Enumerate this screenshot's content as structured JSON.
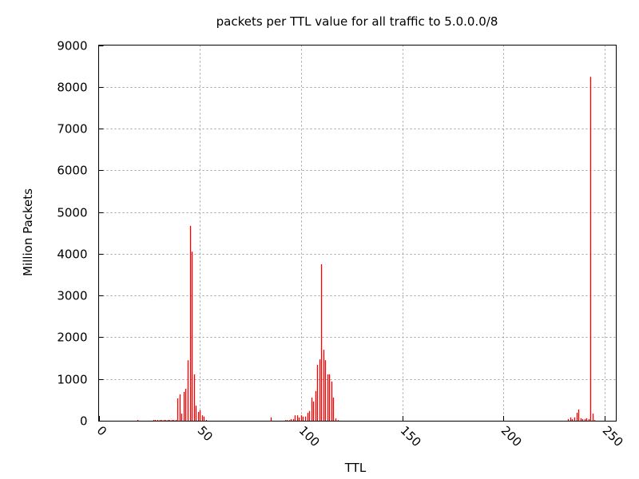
{
  "chart_data": {
    "type": "bar",
    "style": "impulses",
    "title": "packets per TTL value for all traffic to 5.0.0.0/8",
    "xlabel": "TTL",
    "ylabel": "Million Packets",
    "xlim": [
      0,
      255
    ],
    "ylim": [
      0,
      9000
    ],
    "xticks": [
      0,
      50,
      100,
      150,
      200,
      250
    ],
    "yticks": [
      0,
      1000,
      2000,
      3000,
      4000,
      5000,
      6000,
      7000,
      8000,
      9000
    ],
    "grid": true,
    "bar_color": "#ff0000",
    "x": [
      19,
      27,
      28,
      29,
      30,
      31,
      32,
      33,
      34,
      35,
      36,
      37,
      38,
      39,
      40,
      41,
      42,
      43,
      44,
      45,
      46,
      47,
      48,
      49,
      50,
      51,
      52,
      53,
      85,
      92,
      93,
      94,
      95,
      96,
      97,
      98,
      99,
      100,
      101,
      102,
      103,
      104,
      105,
      106,
      107,
      108,
      109,
      110,
      111,
      112,
      113,
      114,
      115,
      116,
      117,
      118,
      232,
      233,
      234,
      235,
      236,
      237,
      238,
      239,
      240,
      241,
      242,
      243,
      244,
      245
    ],
    "values": [
      20,
      20,
      20,
      20,
      20,
      20,
      20,
      20,
      20,
      20,
      20,
      20,
      20,
      535,
      630,
      170,
      690,
      765,
      1450,
      4670,
      4050,
      1110,
      360,
      210,
      250,
      130,
      100,
      20,
      80,
      15,
      15,
      15,
      40,
      40,
      130,
      130,
      75,
      130,
      100,
      100,
      190,
      235,
      555,
      460,
      710,
      1340,
      1470,
      3750,
      1700,
      1450,
      1110,
      1110,
      940,
      555,
      55,
      15,
      40,
      80,
      40,
      80,
      190,
      270,
      60,
      40,
      40,
      60,
      40,
      8240,
      170,
      15
    ]
  }
}
